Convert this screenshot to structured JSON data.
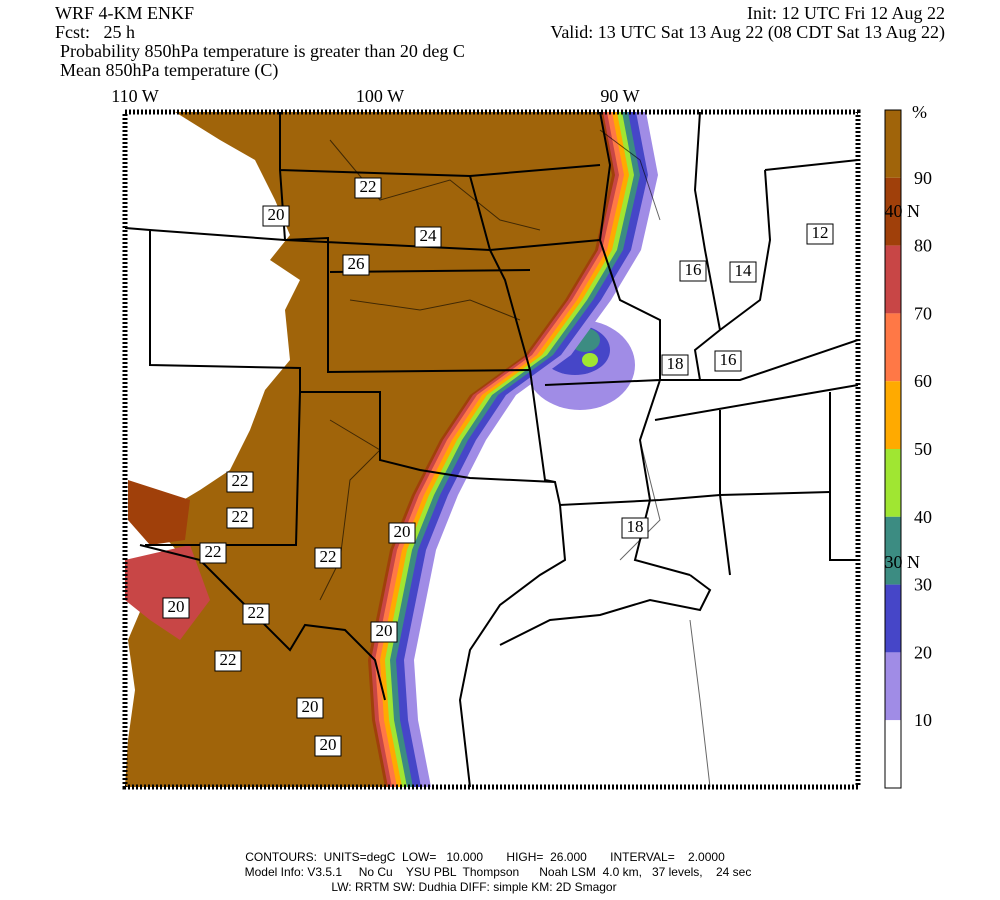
{
  "header": {
    "model": "WRF 4-KM ENKF",
    "forecast": "Fcst:   25 h",
    "init": "Init: 12 UTC Fri 12 Aug 22",
    "valid": "Valid: 13 UTC Sat 13 Aug 22 (08 CDT Sat 13 Aug 22)",
    "field": "Probability 850hPa temperature is greater than 20 deg C",
    "contour_field": "Mean 850hPa temperature (C)"
  },
  "map": {
    "longitudes": [
      "110 W",
      "100 W",
      "90 W"
    ],
    "latitudes": [
      "40 N",
      "30 N"
    ],
    "contours": [
      "22",
      "20",
      "24",
      "26",
      "16",
      "14",
      "12",
      "18",
      "16",
      "22",
      "22",
      "22",
      "20",
      "22",
      "18",
      "20",
      "22",
      "20",
      "22",
      "20",
      "20"
    ]
  },
  "colorbar": {
    "unit": "%",
    "labels": [
      "90",
      "80",
      "70",
      "60",
      "50",
      "40",
      "30",
      "20",
      "10"
    ],
    "colors": [
      "#a0640a",
      "#a0400a",
      "#c84646",
      "#ff7846",
      "#ffaa00",
      "#a0e632",
      "#3c8c82",
      "#4646c8",
      "#a08ce6",
      "#ffffff"
    ]
  },
  "footer": {
    "line1": "CONTOURS:  UNITS=degC  LOW=   10.000       HIGH=  26.000       INTERVAL=    2.0000",
    "line2": "Model Info: V3.5.1     No Cu    YSU PBL  Thompson      Noah LSM  4.0 km,   37 levels,    24 sec",
    "line3": "LW: RRTM SW: Dudhia   DIFF: simple KM: 2D Smagor"
  }
}
